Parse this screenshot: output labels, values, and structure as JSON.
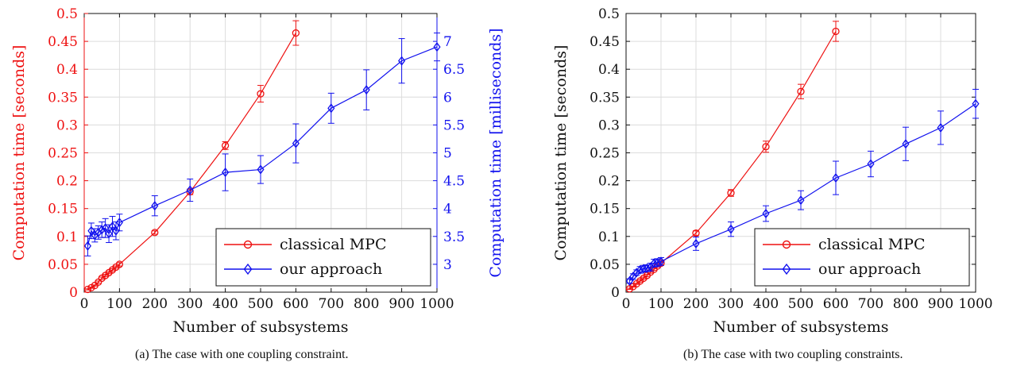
{
  "colors": {
    "classical": "#ee1111",
    "ours": "#1111ee",
    "axis": "#111111",
    "grid": "#dcdcdc"
  },
  "captions": {
    "a": "(a) The case with one coupling constraint.",
    "b": "(b) The case with two coupling constraints."
  },
  "chart_data": [
    {
      "type": "line",
      "xlabel": "Number of subsystems",
      "ylabel": "Computation time [seconds]",
      "y2label": "Computation time [milliseconds]",
      "xlim": [
        0,
        1000
      ],
      "ylim": [
        0,
        0.5
      ],
      "y2lim": [
        2.5,
        7.5
      ],
      "xticks": [
        "0",
        "100",
        "200",
        "300",
        "400",
        "500",
        "600",
        "700",
        "800",
        "900",
        "1000"
      ],
      "yticks": [
        "0",
        "0.05",
        "0.1",
        "0.15",
        "0.2",
        "0.25",
        "0.3",
        "0.35",
        "0.4",
        "0.45",
        "0.5"
      ],
      "y2ticks": [
        "3",
        "3.5",
        "4",
        "4.5",
        "5",
        "5.5",
        "6",
        "6.5",
        "7"
      ],
      "grid": true,
      "legend": "bottom-right",
      "series": [
        {
          "name": "classical MPC",
          "axis": "left",
          "marker": "circle",
          "x": [
            10,
            20,
            30,
            40,
            50,
            60,
            70,
            80,
            90,
            100,
            200,
            300,
            400,
            500,
            600
          ],
          "y": [
            0.005,
            0.008,
            0.012,
            0.018,
            0.025,
            0.03,
            0.035,
            0.04,
            0.045,
            0.05,
            0.107,
            0.18,
            0.263,
            0.356,
            0.465
          ],
          "err": [
            0.001,
            0.001,
            0.001,
            0.002,
            0.002,
            0.002,
            0.002,
            0.002,
            0.002,
            0.003,
            0.003,
            0.005,
            0.007,
            0.015,
            0.022
          ]
        },
        {
          "name": "our approach",
          "axis": "right",
          "marker": "diamond",
          "x": [
            10,
            20,
            30,
            40,
            50,
            60,
            70,
            80,
            90,
            100,
            200,
            300,
            400,
            500,
            600,
            700,
            800,
            900,
            1000
          ],
          "y": [
            3.33,
            3.6,
            3.52,
            3.57,
            3.62,
            3.65,
            3.55,
            3.68,
            3.6,
            3.75,
            4.05,
            4.33,
            4.65,
            4.7,
            5.17,
            5.8,
            6.13,
            6.65,
            6.9
          ],
          "err": [
            0.18,
            0.14,
            0.12,
            0.12,
            0.14,
            0.17,
            0.16,
            0.18,
            0.16,
            0.15,
            0.18,
            0.2,
            0.33,
            0.25,
            0.35,
            0.27,
            0.36,
            0.4,
            0.25
          ]
        }
      ]
    },
    {
      "type": "line",
      "xlabel": "Number of subsystems",
      "ylabel": "Computation time [seconds]",
      "xlim": [
        0,
        1000
      ],
      "ylim": [
        0,
        0.5
      ],
      "xticks": [
        "0",
        "100",
        "200",
        "300",
        "400",
        "500",
        "600",
        "700",
        "800",
        "900",
        "1000"
      ],
      "yticks": [
        "0",
        "0.05",
        "0.1",
        "0.15",
        "0.2",
        "0.25",
        "0.3",
        "0.35",
        "0.4",
        "0.45",
        "0.5"
      ],
      "grid": true,
      "legend": "bottom-right",
      "series": [
        {
          "name": "classical MPC",
          "marker": "circle",
          "x": [
            10,
            20,
            30,
            40,
            50,
            60,
            70,
            80,
            90,
            100,
            200,
            300,
            400,
            500,
            600
          ],
          "y": [
            0.006,
            0.01,
            0.015,
            0.02,
            0.025,
            0.03,
            0.036,
            0.041,
            0.047,
            0.052,
            0.106,
            0.178,
            0.261,
            0.36,
            0.468
          ],
          "err": [
            0.001,
            0.001,
            0.001,
            0.002,
            0.002,
            0.002,
            0.002,
            0.002,
            0.002,
            0.003,
            0.004,
            0.006,
            0.01,
            0.013,
            0.018
          ]
        },
        {
          "name": "our approach",
          "marker": "diamond",
          "x": [
            10,
            20,
            30,
            40,
            50,
            60,
            70,
            80,
            90,
            100,
            200,
            300,
            400,
            500,
            600,
            700,
            800,
            900,
            1000
          ],
          "y": [
            0.02,
            0.028,
            0.035,
            0.04,
            0.042,
            0.043,
            0.045,
            0.052,
            0.053,
            0.055,
            0.087,
            0.113,
            0.141,
            0.165,
            0.205,
            0.23,
            0.266,
            0.295,
            0.338
          ],
          "err": [
            0.004,
            0.005,
            0.005,
            0.006,
            0.006,
            0.006,
            0.007,
            0.007,
            0.007,
            0.007,
            0.012,
            0.013,
            0.014,
            0.017,
            0.03,
            0.023,
            0.03,
            0.03,
            0.026
          ]
        }
      ]
    }
  ]
}
